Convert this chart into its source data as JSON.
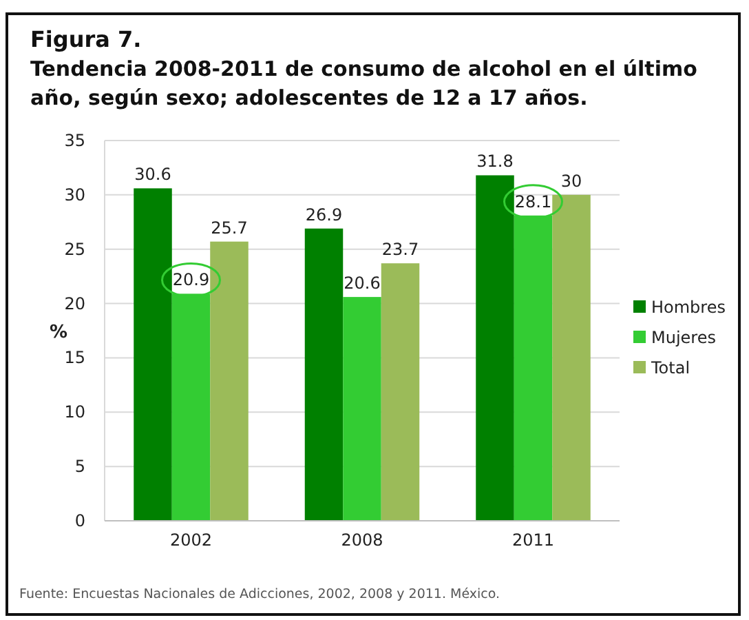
{
  "chart_data": {
    "type": "bar",
    "title": "Figura 7.",
    "subtitle": "Tendencia 2008-2011 de consumo de alcohol en el último año, según sexo; adolescentes de 12 a 17 años.",
    "ylabel": "%",
    "categories": [
      "2002",
      "2008",
      "2011"
    ],
    "series": [
      {
        "name": "Hombres",
        "color": "#008000",
        "values": [
          30.6,
          26.9,
          31.8
        ]
      },
      {
        "name": "Mujeres",
        "color": "#33cc33",
        "values": [
          20.9,
          20.6,
          28.1
        ]
      },
      {
        "name": "Total",
        "color": "#9bbb59",
        "values": [
          25.7,
          23.7,
          30
        ]
      }
    ],
    "ylim": [
      0,
      35
    ],
    "yticks": [
      0,
      5,
      10,
      15,
      20,
      25,
      30,
      35
    ],
    "grid": "y",
    "legend": "right",
    "data_labels": true,
    "annotations": [
      "Fuente: Encuestas Nacionales de Adicciones, 2002, 2008 y 2011.  México."
    ]
  }
}
